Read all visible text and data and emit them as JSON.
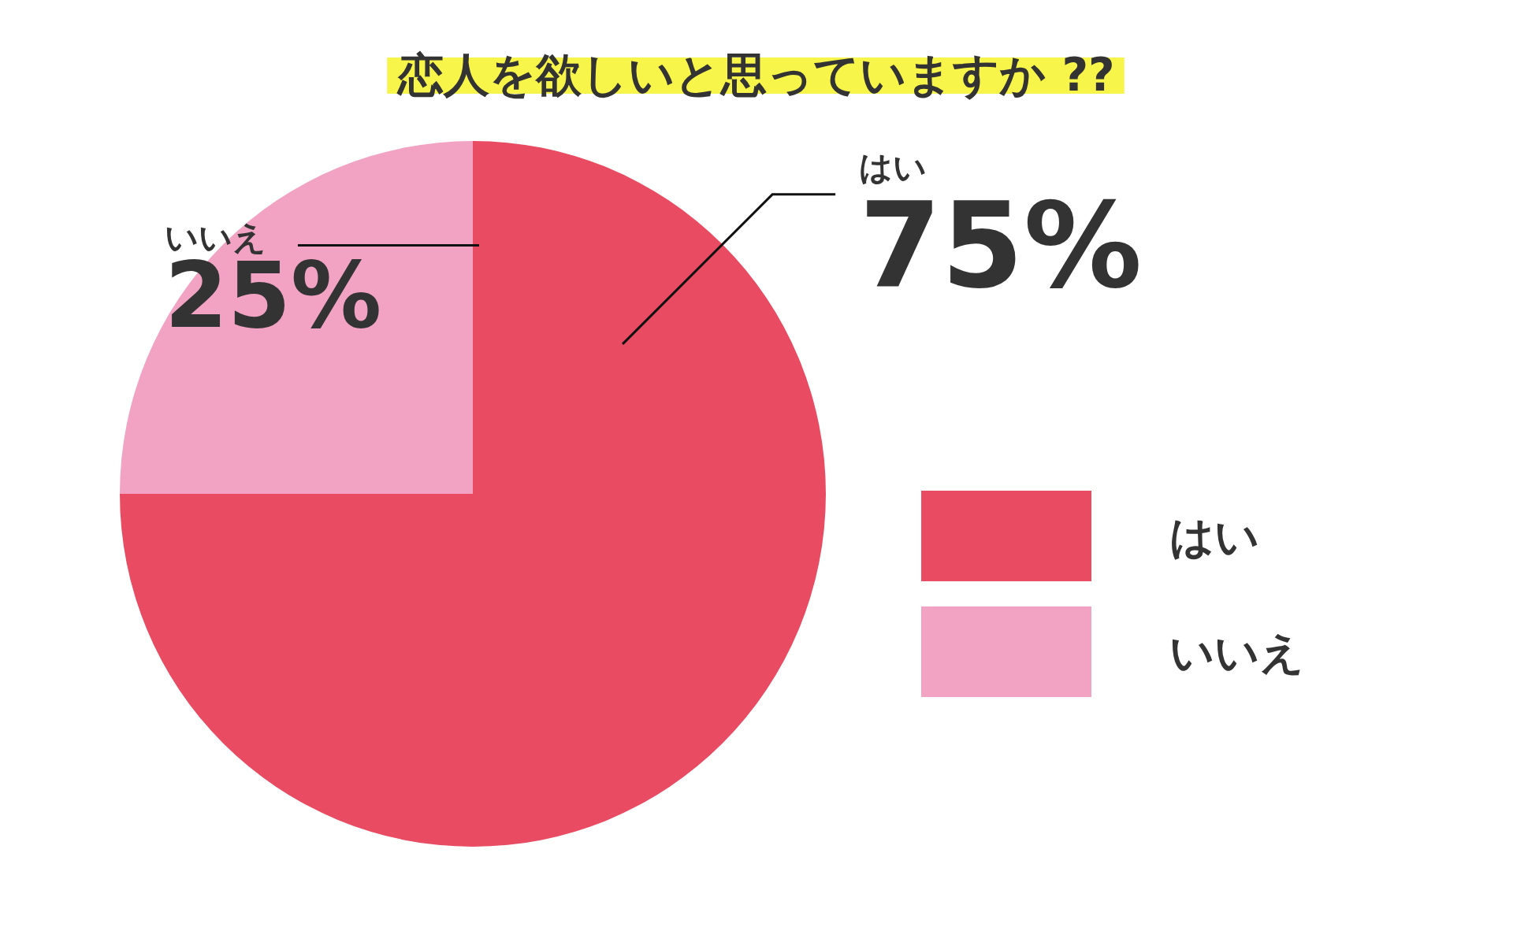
{
  "chart_data": {
    "type": "pie",
    "title": "恋人を欲しいと思っていますか ??",
    "categories": [
      "はい",
      "いいえ"
    ],
    "values": [
      75,
      25
    ],
    "value_labels": [
      "75%",
      "25%"
    ],
    "colors": [
      "#e84b62",
      "#f2a3c4"
    ],
    "legend": "right"
  }
}
